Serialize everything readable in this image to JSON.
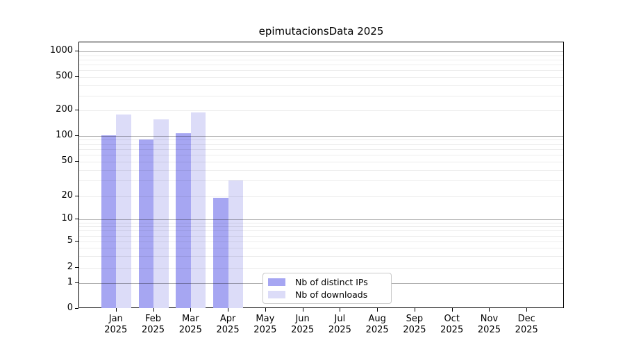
{
  "title": "epimutacionsData 2025",
  "chart_data": {
    "type": "bar",
    "title": "epimutacionsData 2025",
    "categories": [
      "Jan",
      "Feb",
      "Mar",
      "Apr",
      "May",
      "Jun",
      "Jul",
      "Aug",
      "Sep",
      "Oct",
      "Nov",
      "Dec"
    ],
    "x_year_label": "2025",
    "series": [
      {
        "name": "Nb of distinct IPs",
        "color": "#a6a6f2",
        "values": [
          102,
          90,
          108,
          19,
          0,
          0,
          0,
          0,
          0,
          0,
          0,
          0
        ]
      },
      {
        "name": "Nb of downloads",
        "color": "#dcdcf8",
        "values": [
          178,
          158,
          191,
          30,
          0,
          0,
          0,
          0,
          0,
          0,
          0,
          0
        ]
      }
    ],
    "y_ticks": [
      0,
      1,
      2,
      5,
      10,
      20,
      50,
      100,
      200,
      500,
      1000
    ],
    "y_scale": "log-like with zero baseline",
    "ylim": [
      0,
      1000
    ],
    "grid": "horizontal, major lines at powers of 10, faint minor lines at 2-9 multiples",
    "legend_position": "inside plot, lower center-left",
    "legend_entries": [
      "Nb of distinct IPs",
      "Nb of downloads"
    ]
  },
  "legend": {
    "items": [
      {
        "label": "Nb of distinct IPs"
      },
      {
        "label": "Nb of downloads"
      }
    ]
  }
}
